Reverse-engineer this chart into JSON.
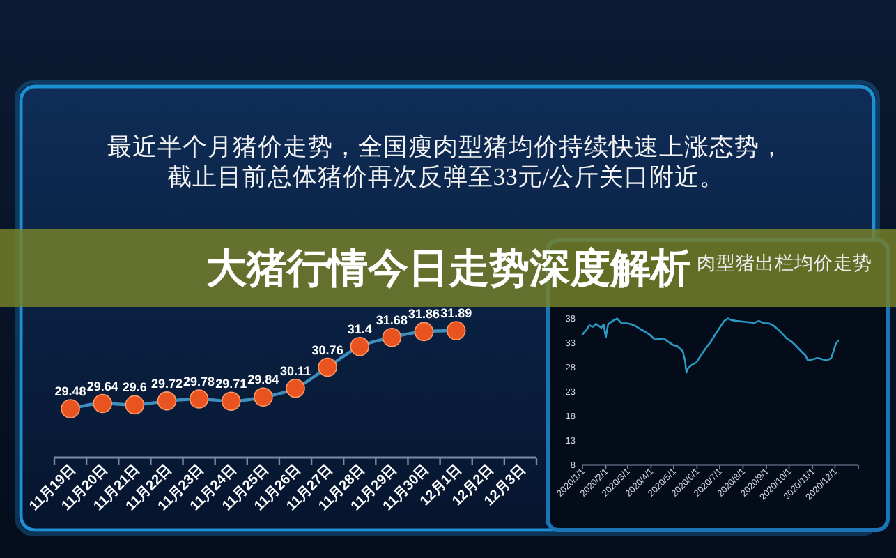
{
  "chart_data": [
    {
      "type": "line",
      "title": "最近半个月猪价走势，全国瘦肉型猪均价持续快速上涨态势，截止目前总体猪价再次反弹至33元/公斤关口附近。",
      "annotations": [
        "大猪行情今日走势深度解析"
      ],
      "categories": [
        "11月19日",
        "11月20日",
        "11月21日",
        "11月22日",
        "11月23日",
        "11月24日",
        "11月25日",
        "11月26日",
        "11月27日",
        "11月28日",
        "11月29日",
        "11月30日",
        "12月1日",
        "12月2日",
        "12月3日"
      ],
      "values": [
        29.48,
        29.64,
        29.6,
        29.72,
        29.78,
        29.71,
        29.84,
        30.11,
        30.76,
        31.4,
        31.68,
        31.86,
        31.89,
        null,
        null
      ],
      "color": "#3e8fbd",
      "colors": [
        "#e8531f",
        "#e8531f",
        "#e8531f",
        "#e8531f",
        "#e8531f",
        "#e8531f",
        "#e8531f",
        "#e8531f",
        "#e8531f",
        "#e8531f",
        "#e8531f",
        "#e8531f",
        "#e8531f",
        null,
        null
      ],
      "marker": "circle",
      "data_labels": true
    },
    {
      "type": "line",
      "title": "肉型猪出栏均价走势",
      "x": [
        "2020-01-01",
        "2020-01-03",
        "2020-01-07",
        "2020-01-10",
        "2020-01-15",
        "2020-01-19",
        "2020-01-26",
        "2020-01-29",
        "2020-02-01",
        "2020-02-04",
        "2020-02-10",
        "2020-02-16",
        "2020-02-22",
        "2020-02-29",
        "2020-03-06",
        "2020-03-12",
        "2020-03-18",
        "2020-03-24",
        "2020-03-30",
        "2020-04-06",
        "2020-04-18",
        "2020-04-24",
        "2020-04-30",
        "2020-05-06",
        "2020-05-13",
        "2020-05-16",
        "2020-05-18",
        "2020-05-20",
        "2020-05-25",
        "2020-05-31",
        "2020-06-06",
        "2020-06-12",
        "2020-06-19",
        "2020-06-25",
        "2020-07-01",
        "2020-07-07",
        "2020-07-12",
        "2020-07-16",
        "2020-07-23",
        "2020-08-04",
        "2020-08-16",
        "2020-08-22",
        "2020-08-29",
        "2020-09-04",
        "2020-09-10",
        "2020-09-16",
        "2020-09-22",
        "2020-09-28",
        "2020-10-05",
        "2020-10-11",
        "2020-10-17",
        "2020-10-23",
        "2020-10-26",
        "2020-10-31",
        "2020-11-08",
        "2020-11-20",
        "2020-11-26",
        "2020-11-29",
        "2020-12-02",
        "2020-12-05"
      ],
      "values": [
        34.7,
        35.1,
        35.8,
        36.6,
        36.3,
        36.9,
        36.1,
        36.8,
        34.2,
        36.8,
        37.5,
        38.0,
        37.0,
        37.0,
        36.8,
        36.4,
        35.8,
        35.3,
        34.7,
        33.7,
        33.9,
        33.2,
        32.6,
        32.3,
        31.3,
        29.4,
        26.9,
        27.8,
        28.5,
        29.0,
        30.4,
        31.8,
        33.2,
        34.7,
        36.1,
        37.5,
        38.0,
        37.7,
        37.5,
        37.3,
        37.1,
        37.5,
        37.0,
        37.0,
        36.6,
        35.8,
        34.9,
        33.9,
        33.2,
        32.3,
        31.3,
        30.4,
        29.4,
        29.6,
        29.9,
        29.4,
        29.9,
        31.3,
        32.8,
        33.4
      ],
      "color": "#2b9ac4",
      "xlim": [
        "2020-01-01",
        "2021-01-01"
      ],
      "xticks": [
        {
          "value": "2020-01-01",
          "label": "2020/1/1"
        },
        {
          "value": "2020-02-01",
          "label": "2020/2/1"
        },
        {
          "value": "2020-03-01",
          "label": "2020/3/1"
        },
        {
          "value": "2020-04-01",
          "label": "2020/4/1"
        },
        {
          "value": "2020-05-01",
          "label": "2020/5/1"
        },
        {
          "value": "2020-06-01",
          "label": "2020/6/1"
        },
        {
          "value": "2020-07-01",
          "label": "2020/7/1"
        },
        {
          "value": "2020-08-01",
          "label": "2020/8/1"
        },
        {
          "value": "2020-09-01",
          "label": "2020/9/1"
        },
        {
          "value": "2020-10-01",
          "label": "2020/10/1"
        },
        {
          "value": "2020-11-01",
          "label": "2020/11/1"
        },
        {
          "value": "2020-12-01",
          "label": "2020/12/1"
        },
        {
          "value": "2021-01-01",
          "label": null
        }
      ],
      "ylim": [
        8,
        38
      ],
      "yticks": [
        8,
        13,
        18,
        23,
        28,
        33,
        38
      ]
    }
  ]
}
